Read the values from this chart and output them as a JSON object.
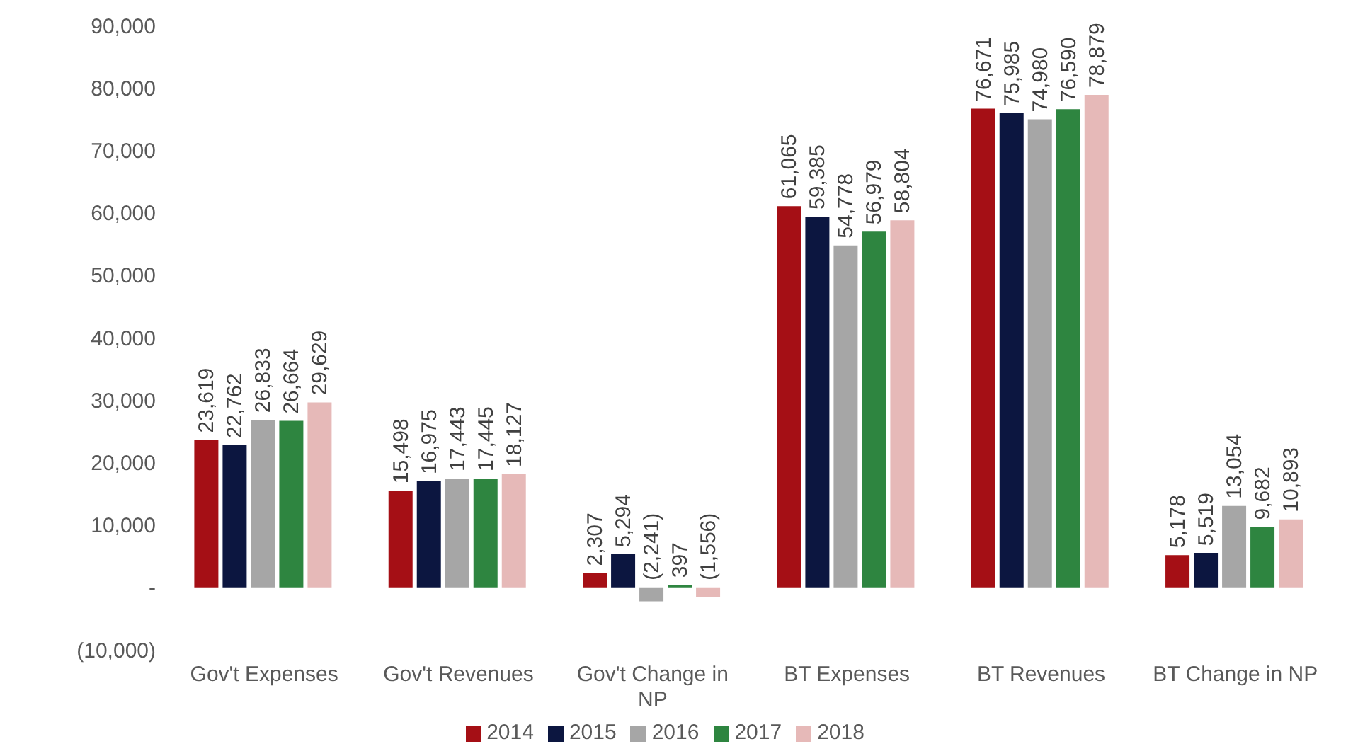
{
  "chart_data": {
    "type": "bar",
    "categories": [
      "Gov't Expenses",
      "Gov't Revenues",
      "Gov't Change in NP",
      "BT Expenses",
      "BT Revenues",
      "BT Change in NP"
    ],
    "series": [
      {
        "name": "2014",
        "color": "#a50f15",
        "values": [
          23619,
          15498,
          2307,
          61065,
          76671,
          5178
        ],
        "value_labels": [
          "23,619",
          "15,498",
          "2,307",
          "61,065",
          "76,671",
          "5,178"
        ]
      },
      {
        "name": "2015",
        "color": "#0c1640",
        "values": [
          22762,
          16975,
          5294,
          59385,
          75985,
          5519
        ],
        "value_labels": [
          "22,762",
          "16,975",
          "5,294",
          "59,385",
          "75,985",
          "5,519"
        ]
      },
      {
        "name": "2016",
        "color": "#a6a6a6",
        "values": [
          26833,
          17443,
          -2241,
          54778,
          74980,
          13054
        ],
        "value_labels": [
          "26,833",
          "17,443",
          "(2,241)",
          "54,778",
          "74,980",
          "13,054"
        ]
      },
      {
        "name": "2017",
        "color": "#2e8540",
        "values": [
          26664,
          17445,
          397,
          56979,
          76590,
          9682
        ],
        "value_labels": [
          "26,664",
          "17,445",
          "397",
          "56,979",
          "76,590",
          "9,682"
        ]
      },
      {
        "name": "2018",
        "color": "#e6b9b8",
        "values": [
          29629,
          18127,
          -1556,
          58804,
          78879,
          10893
        ],
        "value_labels": [
          "29,629",
          "18,127",
          "(1,556)",
          "58,804",
          "78,879",
          "10,893"
        ]
      }
    ],
    "ylim": [
      -10000,
      90000
    ],
    "yticks": [
      {
        "value": -10000,
        "label": "(10,000)"
      },
      {
        "value": 0,
        "label": "-"
      },
      {
        "value": 10000,
        "label": "10,000"
      },
      {
        "value": 20000,
        "label": "20,000"
      },
      {
        "value": 30000,
        "label": "30,000"
      },
      {
        "value": 40000,
        "label": "40,000"
      },
      {
        "value": 50000,
        "label": "50,000"
      },
      {
        "value": 60000,
        "label": "60,000"
      },
      {
        "value": 70000,
        "label": "70,000"
      },
      {
        "value": 80000,
        "label": "80,000"
      },
      {
        "value": 90000,
        "label": "90,000"
      }
    ],
    "grid": false,
    "legend": "bottom"
  }
}
